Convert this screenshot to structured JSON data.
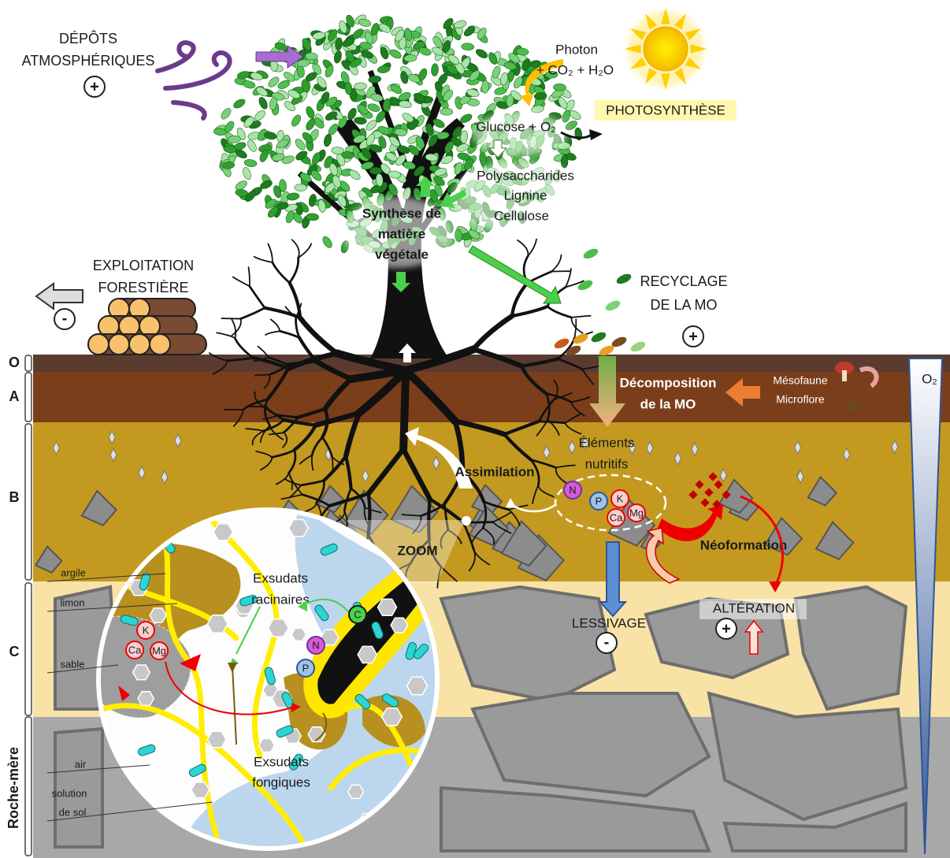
{
  "atmosphere": {
    "title": [
      "DÉPÔTS",
      "ATMOSPHÉRIQUES"
    ],
    "sign": "+"
  },
  "photosynthesis": {
    "input": [
      "Photon",
      "+ CO₂ + H₂O"
    ],
    "title": "PHOTOSYNTHÈSE",
    "product": "Glucose + O₂",
    "compounds": [
      "Polysaccharides",
      "Lignine",
      "Cellulose"
    ]
  },
  "synthesis": [
    "Synthèse de",
    "matière",
    "végétale"
  ],
  "harvest": {
    "title": [
      "EXPLOITATION",
      "FORESTIÈRE"
    ],
    "sign": "-"
  },
  "recycling": {
    "title": [
      "RECYCLAGE",
      "DE LA MO"
    ],
    "sign": "+"
  },
  "horizons": [
    "O",
    "A",
    "B",
    "C",
    "Roche-mère"
  ],
  "oxygen": "O₂",
  "decomposition": {
    "title": [
      "Décomposition",
      "de la MO"
    ],
    "agents": [
      "Mésofaune",
      "Microflore"
    ]
  },
  "nutrients": {
    "title": [
      "Éléments",
      "nutritifs"
    ],
    "elements": [
      "N",
      "P",
      "K",
      "Ca",
      "Mg"
    ]
  },
  "assimilation": "Assimilation",
  "neoformation": "Néoformation",
  "zoom": "ZOOM",
  "weathering": {
    "title": "ALTÉRATION",
    "sign": "+"
  },
  "leaching": {
    "title": "LESSIVAGE",
    "sign": "-"
  },
  "zoom_view": {
    "components": [
      "argile",
      "limon",
      "sable",
      "air",
      "solution",
      "de sol"
    ],
    "root_exudates": [
      "Exsudats",
      "racinaires"
    ],
    "fungal_exudates": [
      "Exsudats",
      "fongiques"
    ],
    "elements": [
      "C",
      "N",
      "P",
      "K",
      "Ca",
      "Mg"
    ]
  }
}
